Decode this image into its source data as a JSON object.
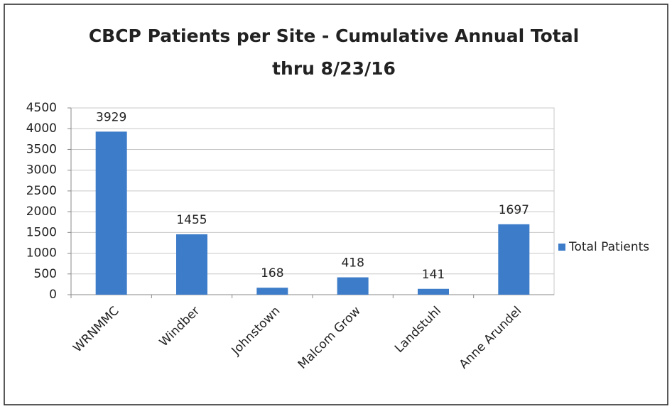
{
  "chart_data": {
    "type": "bar",
    "title": [
      "CBCP Patients per Site - Cumulative Annual Total",
      "thru 8/23/16"
    ],
    "categories": [
      "WRNMMC",
      "Windber",
      "Johnstown",
      "Malcom Grow",
      "Landstuhl",
      "Anne Arundel"
    ],
    "series": [
      {
        "name": "Total Patients",
        "color": "#3d7cc9",
        "values": [
          3929,
          1455,
          168,
          418,
          141,
          1697
        ]
      }
    ],
    "ylim": [
      0,
      4500
    ],
    "yticks": [
      0,
      500,
      1000,
      1500,
      2000,
      2500,
      3000,
      3500,
      4000,
      4500
    ],
    "grid": true,
    "legend": "right"
  }
}
